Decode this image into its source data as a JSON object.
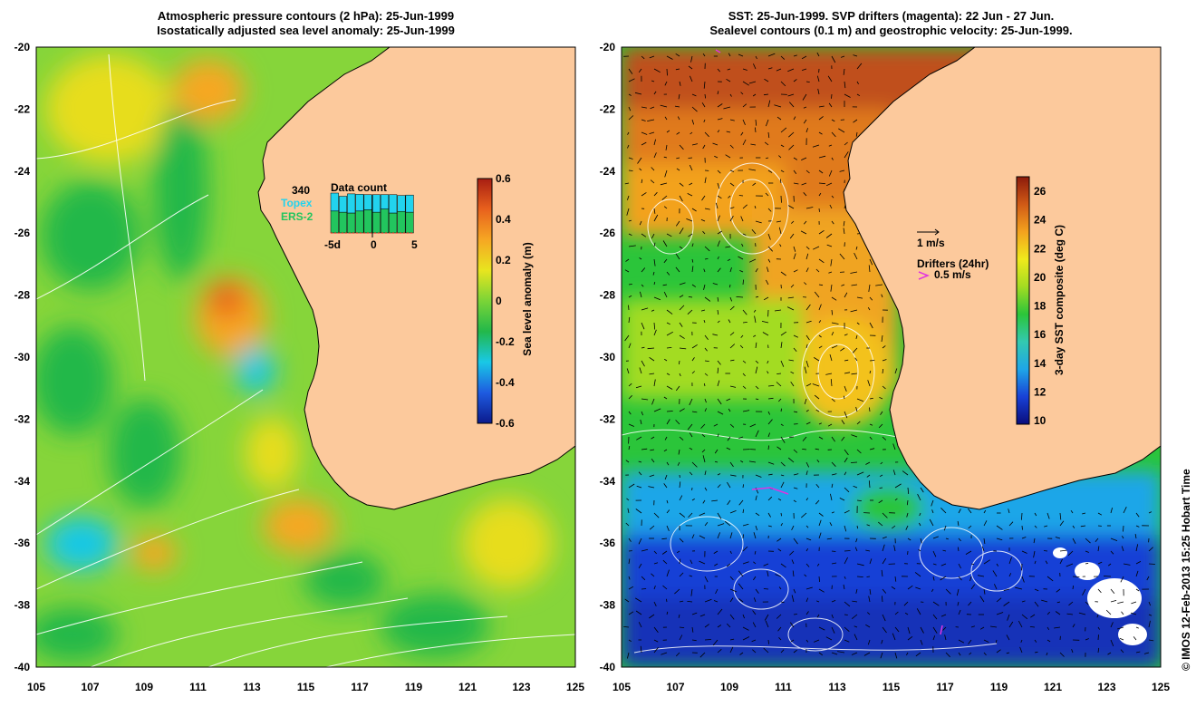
{
  "left_panel": {
    "title_line1": "Atmospheric pressure contours (2 hPa): 25-Jun-1999",
    "title_line2": "Isostatically adjusted sea level anomaly: 25-Jun-1999",
    "y_ticks": [
      "-20",
      "-22",
      "-24",
      "-26",
      "-28",
      "-30",
      "-32",
      "-34",
      "-36",
      "-38",
      "-40"
    ],
    "x_ticks": [
      "105",
      "107",
      "109",
      "111",
      "113",
      "115",
      "117",
      "119",
      "121",
      "123",
      "125"
    ],
    "colorbar": {
      "label": "Sea level anomaly (m)",
      "ticks": [
        "0.6",
        "0.4",
        "0.2",
        "0",
        "-0.2",
        "-0.4",
        "-0.6"
      ],
      "stops": [
        "#0b1a8c",
        "#1e5be0",
        "#19c8e6",
        "#22b84a",
        "#7ad437",
        "#e8e51f",
        "#f6a723",
        "#e8611d",
        "#a81e12"
      ]
    },
    "data_count": {
      "title": "Data count",
      "max": "340",
      "topex_label": "Topex",
      "ers_label": "ERS-2",
      "axis_ticks": [
        "-5d",
        "0",
        "5"
      ],
      "topex_color": "#22d3ee",
      "ers_color": "#22c55e",
      "topex_fraction": [
        0.45,
        0.4,
        0.48,
        0.42,
        0.38,
        0.44,
        0.36,
        0.46,
        0.4,
        0.43
      ],
      "ers_fraction": [
        0.55,
        0.52,
        0.5,
        0.55,
        0.58,
        0.52,
        0.6,
        0.5,
        0.54,
        0.52
      ]
    }
  },
  "right_panel": {
    "title_line1": "SST: 25-Jun-1999. SVP drifters (magenta): 22 Jun - 27 Jun.",
    "title_line2": "Sealevel contours (0.1 m) and geostrophic velocity: 25-Jun-1999.",
    "y_ticks": [
      "-20",
      "-22",
      "-24",
      "-26",
      "-28",
      "-30",
      "-32",
      "-34",
      "-36",
      "-38",
      "-40"
    ],
    "x_ticks": [
      "105",
      "107",
      "109",
      "111",
      "113",
      "115",
      "117",
      "119",
      "121",
      "123",
      "125"
    ],
    "colorbar": {
      "label": "3-day SST composite (deg C)",
      "ticks": [
        "26",
        "24",
        "22",
        "20",
        "18",
        "16",
        "14",
        "12",
        "10"
      ],
      "stops": [
        "#0a0d7c",
        "#1841d6",
        "#1fa6e8",
        "#33c9b0",
        "#2bc53a",
        "#a3dc22",
        "#f0ea1c",
        "#f3a21e",
        "#d05a16",
        "#8c1a0b"
      ]
    },
    "legend_velocity": "1 m/s",
    "legend_drifters": "Drifters (24hr)",
    "legend_drifter_speed": "0.5 m/s",
    "drifter_color": "#e033e0"
  },
  "land_color": "#fcc99c",
  "credit": "© IMOS 12-Feb-2013 15:25 Hobart Time"
}
